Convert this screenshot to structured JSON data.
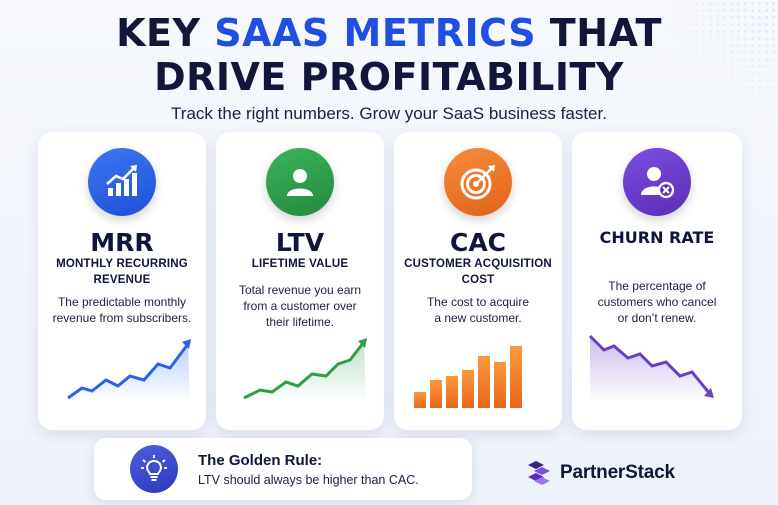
{
  "header": {
    "title_prefix": "KEY ",
    "title_accent": "SAAS METRICS",
    "title_suffix": " THAT",
    "title_line2": "DRIVE PROFITABILITY",
    "subtitle": "Track the right numbers. Grow your SaaS business faster."
  },
  "colors": {
    "accent": "#1f4fe0",
    "mrr": "#2a62e8",
    "ltv": "#2f9e48",
    "cac": "#f07a2a",
    "churn": "#6a3fc8"
  },
  "cards": [
    {
      "icon": "growth-chart-icon",
      "metric": "MRR",
      "full_line1": "MONTHLY RECURRING",
      "full_line2": "REVENUE",
      "desc_line1": "The predictable monthly",
      "desc_line2": "revenue from subscribers.",
      "desc_line3": ""
    },
    {
      "icon": "user-icon",
      "metric": "LTV",
      "full_line1": "LIFETIME VALUE",
      "full_line2": "",
      "desc_line1": "Total revenue you earn",
      "desc_line2": "from a customer over",
      "desc_line3": "their lifetime."
    },
    {
      "icon": "target-icon",
      "metric": "CAC",
      "full_line1": "CUSTOMER ACQUISITION",
      "full_line2": "COST",
      "desc_line1": "The cost to acquire",
      "desc_line2": "a new customer.",
      "desc_line3": ""
    },
    {
      "icon": "user-remove-icon",
      "metric": "CHURN RATE",
      "full_line1": "",
      "full_line2": "",
      "desc_line1": "The percentage of",
      "desc_line2": "customers who cancel",
      "desc_line3": "or don’t renew."
    }
  ],
  "golden_rule": {
    "icon": "lightbulb-icon",
    "title": "The Golden Rule:",
    "text": "LTV should always be higher than CAC."
  },
  "brand": {
    "icon": "partnerstack-logo-icon",
    "name": "PartnerStack"
  }
}
